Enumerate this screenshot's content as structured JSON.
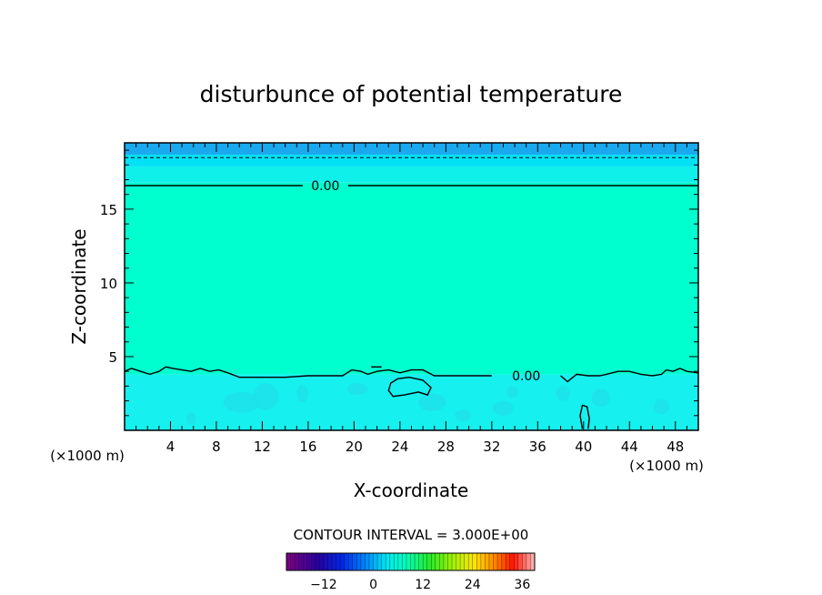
{
  "chart_data": {
    "type": "contour",
    "title": "disturbunce of potential temperature",
    "xlabel": "X-coordinate",
    "ylabel": "Z-coordinate",
    "x_unit": "(×1000 m)",
    "xlim": [
      0,
      50
    ],
    "ylim": [
      0,
      19.5
    ],
    "xticks": [
      4,
      8,
      12,
      16,
      20,
      24,
      28,
      32,
      36,
      40,
      44,
      48
    ],
    "yticks": [
      5,
      10,
      15
    ],
    "contour_interval": "CONTOUR INTERVAL = 3.000E+00",
    "contour_labels": [
      {
        "text": "0.00",
        "x": 17.5,
        "z": 16.6
      },
      {
        "text": "0.00",
        "x": 35,
        "z": 3.6
      }
    ],
    "fill_bands": [
      {
        "z_from": 0,
        "z_to": 3.8,
        "color": "#16f0ee"
      },
      {
        "z_from": 3.8,
        "z_to": 16.8,
        "color": "#00ffce"
      },
      {
        "z_from": 16.8,
        "z_to": 17.9,
        "color": "#0ff0ea"
      },
      {
        "z_from": 17.9,
        "z_to": 18.7,
        "color": "#00e1f5"
      },
      {
        "z_from": 18.7,
        "z_to": 19.5,
        "color": "#1aa9ee"
      }
    ],
    "colorbar": {
      "ticks": [
        -12,
        0,
        12,
        24,
        36
      ],
      "min": -21,
      "max": 39
    }
  }
}
